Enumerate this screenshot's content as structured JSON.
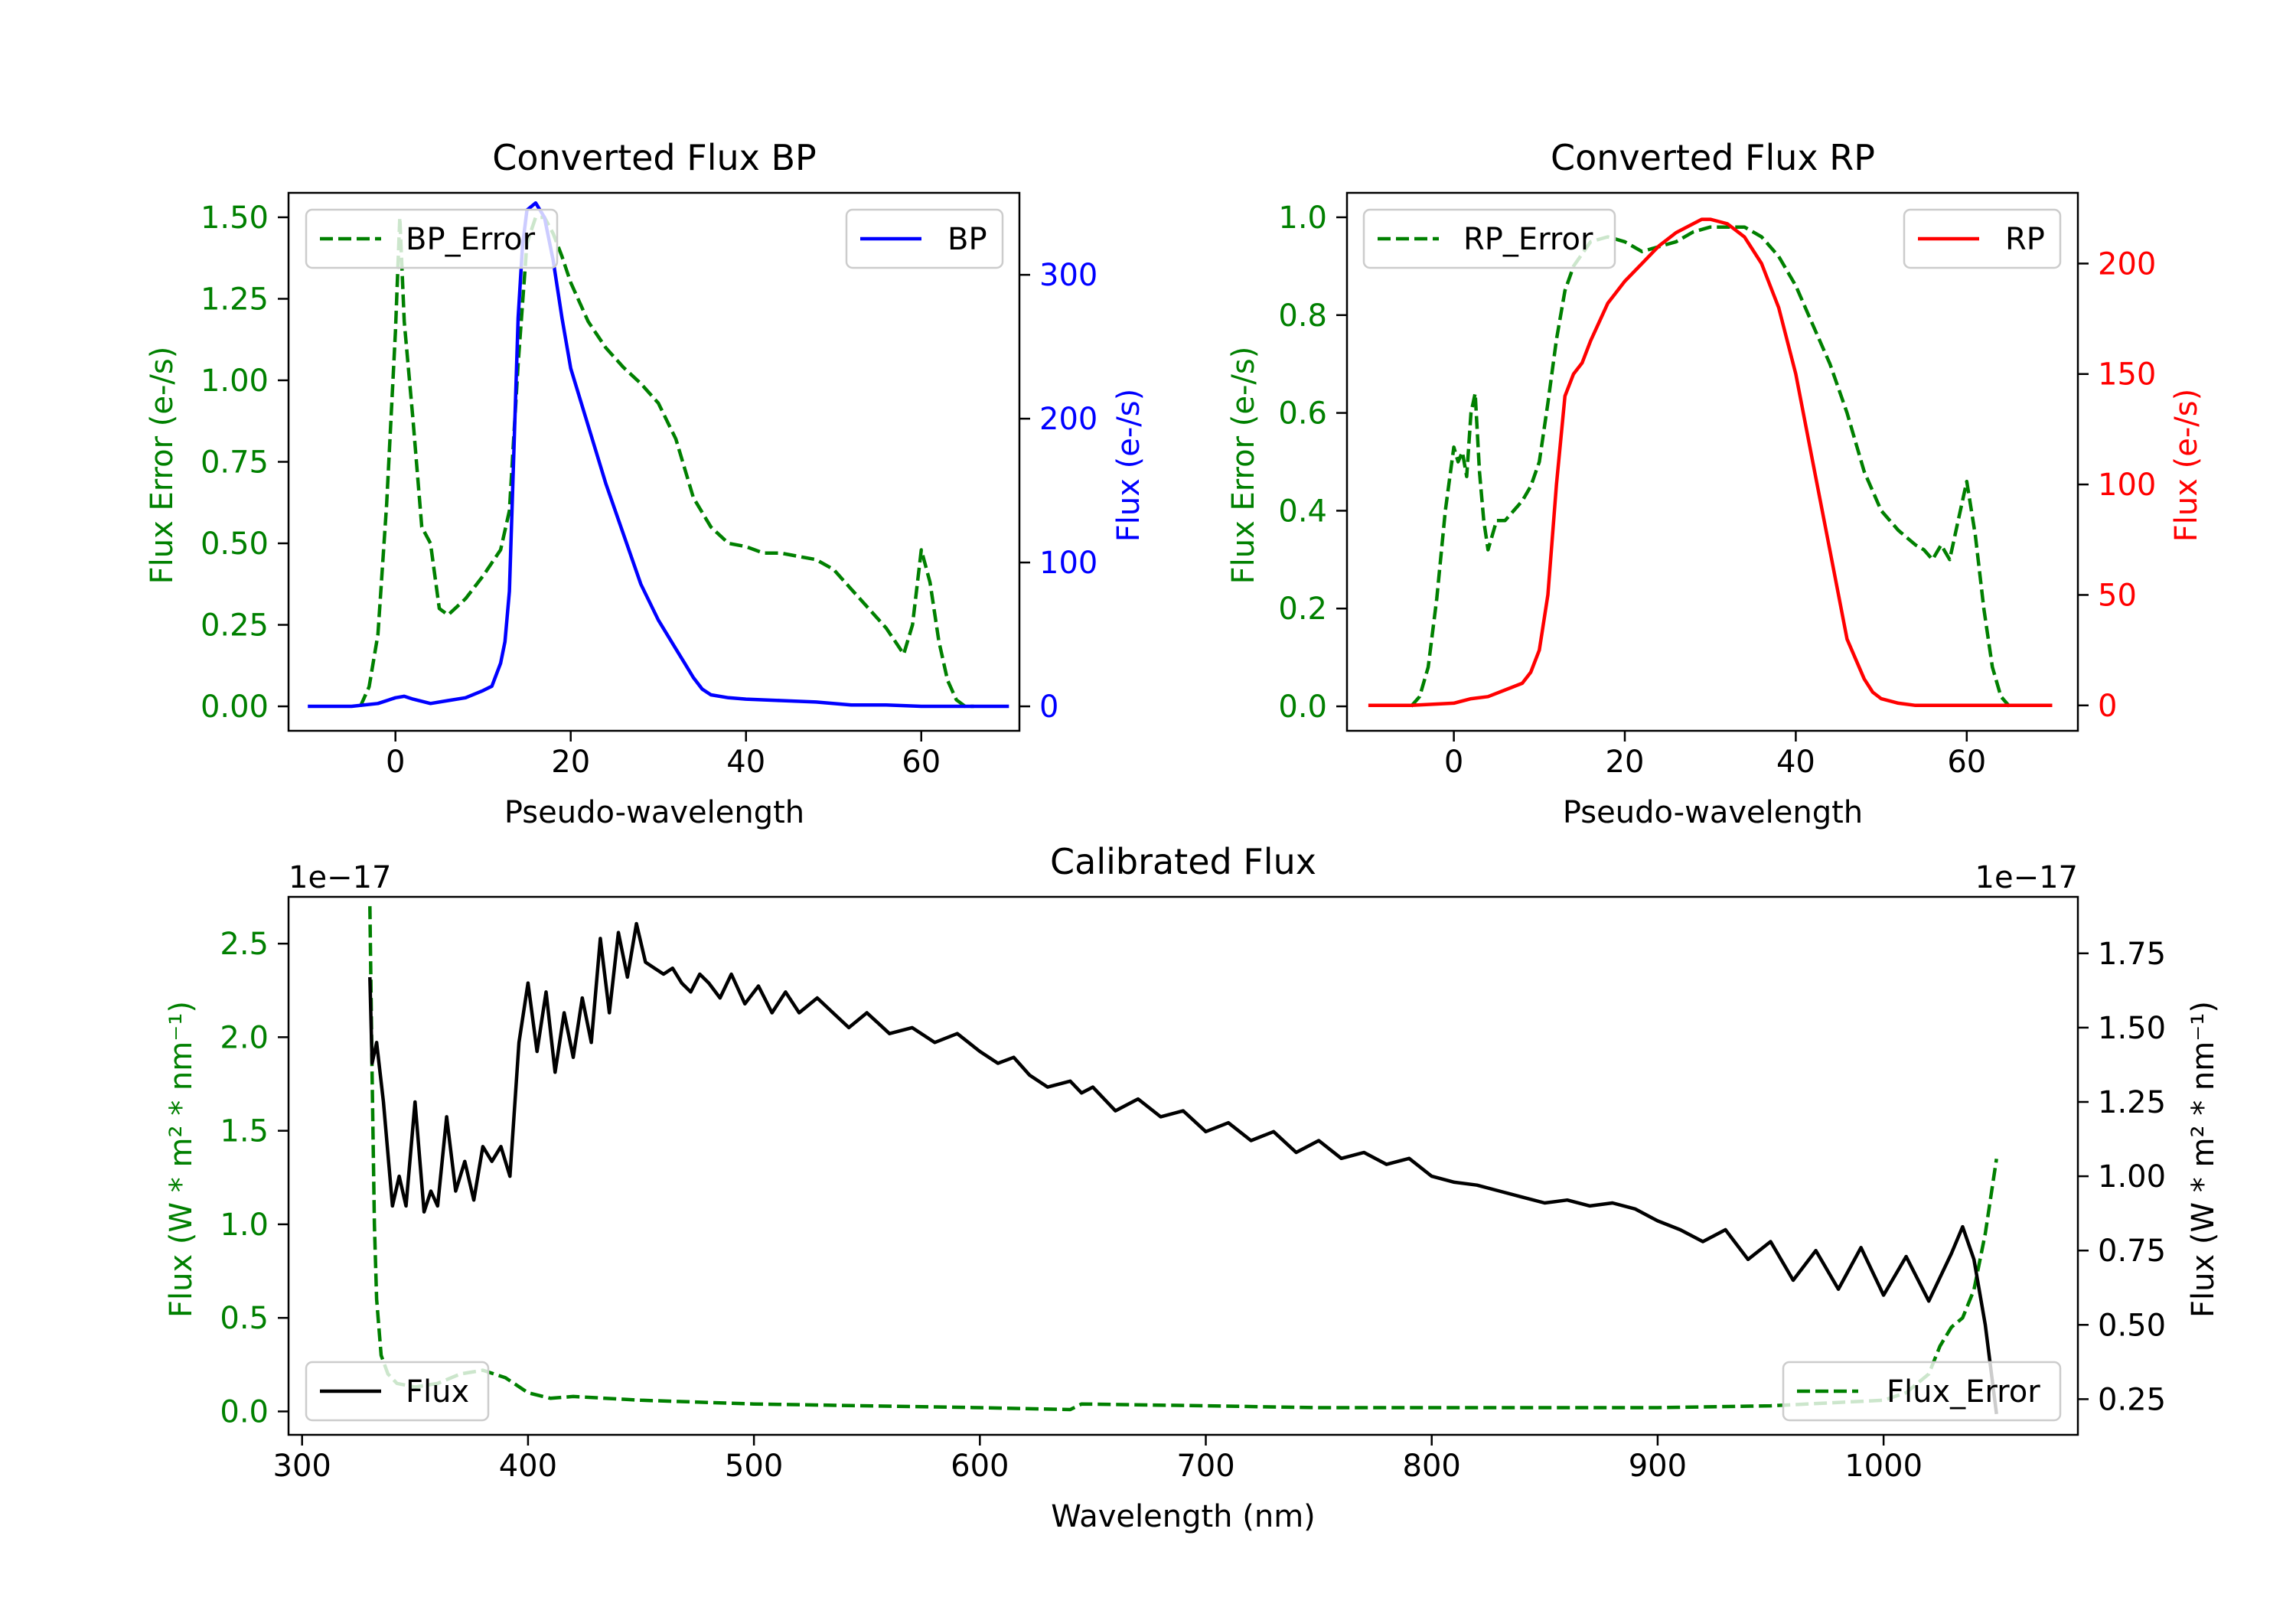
{
  "colors": {
    "green": "#008000",
    "blue": "#0000ff",
    "red": "#ff0000",
    "black": "#000000",
    "axis": "#000000",
    "legend_border": "#cccccc"
  },
  "chart_data": [
    {
      "id": "bp",
      "type": "line",
      "title": "Converted Flux BP",
      "xlabel": "Pseudo-wavelength",
      "ylabel_left": "Flux Error (e-/s)",
      "ylabel_right": "Flux (e-/s)",
      "xlim": [
        -12.2,
        71.2
      ],
      "ylim_left": [
        -0.075,
        1.575
      ],
      "ylim_right": [
        -17,
        357
      ],
      "xticks": [
        0,
        20,
        40,
        60
      ],
      "yticks_left": [
        "0.00",
        "0.25",
        "0.50",
        "0.75",
        "1.00",
        "1.25",
        "1.50"
      ],
      "yticks_right": [
        "0",
        "100",
        "200",
        "300"
      ],
      "series": [
        {
          "name": "BP_Error",
          "axis": "left",
          "color": "#008000",
          "dash": true,
          "legend": "upper left",
          "x": [
            -4,
            -3,
            -2,
            -1,
            0,
            0.5,
            1,
            2,
            3,
            4,
            5,
            6,
            8,
            10,
            12,
            13,
            14,
            15,
            16,
            17,
            18,
            19,
            20,
            22,
            24,
            26,
            28,
            30,
            32,
            34,
            36,
            38,
            40,
            42,
            44,
            46,
            48,
            50,
            52,
            54,
            56,
            57,
            58,
            59,
            60,
            61,
            62,
            63,
            64,
            65,
            66
          ],
          "y": [
            0.0,
            0.06,
            0.22,
            0.62,
            1.15,
            1.5,
            1.18,
            0.88,
            0.55,
            0.5,
            0.3,
            0.28,
            0.33,
            0.4,
            0.48,
            0.6,
            1.05,
            1.42,
            1.5,
            1.5,
            1.45,
            1.38,
            1.3,
            1.18,
            1.1,
            1.04,
            0.99,
            0.93,
            0.82,
            0.64,
            0.55,
            0.5,
            0.49,
            0.47,
            0.47,
            0.46,
            0.45,
            0.42,
            0.36,
            0.3,
            0.24,
            0.2,
            0.16,
            0.25,
            0.48,
            0.38,
            0.2,
            0.08,
            0.02,
            0.0,
            0.0
          ]
        },
        {
          "name": "BP",
          "axis": "right",
          "color": "#0000ff",
          "dash": false,
          "legend": "upper right",
          "x": [
            -10,
            -5,
            -2,
            0,
            1,
            2,
            4,
            6,
            8,
            10,
            11,
            12,
            12.5,
            13,
            14,
            14.5,
            15,
            16,
            17,
            18,
            19,
            20,
            22,
            24,
            26,
            28,
            30,
            32,
            33,
            34,
            35,
            36,
            38,
            40,
            44,
            48,
            52,
            56,
            60,
            62,
            64,
            66,
            68,
            70
          ],
          "y": [
            0,
            0,
            2,
            6,
            7,
            5,
            2,
            4,
            6,
            11,
            14,
            30,
            45,
            80,
            270,
            320,
            345,
            350,
            340,
            310,
            270,
            235,
            195,
            155,
            120,
            85,
            60,
            40,
            30,
            20,
            12,
            8,
            6,
            5,
            4,
            3,
            1,
            1,
            0,
            0,
            0,
            0,
            0,
            0
          ]
        }
      ]
    },
    {
      "id": "rp",
      "type": "line",
      "title": "Converted Flux RP",
      "xlabel": "Pseudo-wavelength",
      "ylabel_left": "Flux Error (e-/s)",
      "ylabel_right": "Flux (e-/s)",
      "xlim": [
        -12.5,
        73.0
      ],
      "ylim_left": [
        -0.05,
        1.05
      ],
      "ylim_right": [
        -11.5,
        232
      ],
      "xticks": [
        0,
        20,
        40,
        60
      ],
      "yticks_left": [
        "0.0",
        "0.2",
        "0.4",
        "0.6",
        "0.8",
        "1.0"
      ],
      "yticks_right": [
        "0",
        "50",
        "100",
        "150",
        "200"
      ],
      "series": [
        {
          "name": "RP_Error",
          "axis": "left",
          "color": "#008000",
          "dash": true,
          "legend": "upper left",
          "x": [
            -5,
            -4,
            -3,
            -2,
            -1,
            0,
            0.5,
            1,
            1.5,
            2,
            2.5,
            3,
            3.5,
            4,
            5,
            6,
            7,
            8,
            9,
            10,
            11,
            12,
            13,
            14,
            16,
            18,
            20,
            22,
            24,
            26,
            28,
            30,
            32,
            34,
            36,
            38,
            40,
            42,
            44,
            46,
            48,
            50,
            52,
            54,
            55,
            56,
            57,
            58,
            59,
            60,
            61,
            62,
            63,
            64,
            65
          ],
          "y": [
            0.0,
            0.02,
            0.08,
            0.22,
            0.4,
            0.53,
            0.5,
            0.52,
            0.47,
            0.6,
            0.64,
            0.48,
            0.38,
            0.32,
            0.38,
            0.38,
            0.4,
            0.42,
            0.45,
            0.5,
            0.62,
            0.75,
            0.85,
            0.9,
            0.95,
            0.96,
            0.95,
            0.93,
            0.94,
            0.95,
            0.97,
            0.98,
            0.98,
            0.98,
            0.96,
            0.92,
            0.86,
            0.78,
            0.7,
            0.6,
            0.48,
            0.4,
            0.36,
            0.33,
            0.32,
            0.3,
            0.33,
            0.3,
            0.38,
            0.46,
            0.35,
            0.2,
            0.08,
            0.02,
            0.0
          ]
        },
        {
          "name": "RP",
          "axis": "right",
          "color": "#ff0000",
          "dash": false,
          "legend": "upper right",
          "x": [
            -10,
            -5,
            0,
            2,
            4,
            6,
            8,
            9,
            10,
            11,
            12,
            13,
            14,
            15,
            16,
            18,
            20,
            22,
            24,
            26,
            28,
            29,
            30,
            31,
            32,
            34,
            36,
            38,
            40,
            42,
            44,
            46,
            48,
            49,
            50,
            52,
            54,
            56,
            58,
            60,
            62,
            65,
            70
          ],
          "y": [
            0,
            0,
            1,
            3,
            4,
            7,
            10,
            15,
            25,
            50,
            100,
            140,
            150,
            155,
            165,
            182,
            192,
            200,
            208,
            214,
            218,
            220,
            220,
            219,
            218,
            212,
            200,
            180,
            150,
            110,
            70,
            30,
            12,
            6,
            3,
            1,
            0,
            0,
            0,
            0,
            0,
            0,
            0
          ]
        }
      ]
    },
    {
      "id": "cal",
      "type": "line",
      "title": "Calibrated Flux",
      "xlabel": "Wavelength (nm)",
      "ylabel_left": "Flux (W * m² * nm⁻¹)",
      "ylabel_right": "Flux (W * m² * nm⁻¹)",
      "offset_left": "1e−17",
      "offset_right": "1e−17",
      "xlim": [
        294,
        1086
      ],
      "ylim_left": [
        -0.125,
        2.75
      ],
      "ylim_right": [
        0.13,
        1.94
      ],
      "xticks": [
        300,
        400,
        500,
        600,
        700,
        800,
        900,
        1000
      ],
      "yticks_left": [
        "0.0",
        "0.5",
        "1.0",
        "1.5",
        "2.0",
        "2.5"
      ],
      "yticks_right": [
        "0.25",
        "0.50",
        "0.75",
        "1.00",
        "1.25",
        "1.50",
        "1.75"
      ],
      "series": [
        {
          "name": "Flux_Error",
          "axis": "left",
          "color": "#008000",
          "dash": true,
          "legend": "lower right",
          "x": [
            330,
            331,
            332,
            333,
            335,
            338,
            342,
            350,
            360,
            370,
            380,
            390,
            400,
            410,
            420,
            450,
            500,
            550,
            600,
            640,
            645,
            700,
            750,
            800,
            850,
            900,
            950,
            1000,
            1010,
            1020,
            1025,
            1030,
            1035,
            1040,
            1045,
            1050
          ],
          "y": [
            2.7,
            1.8,
            1.0,
            0.6,
            0.3,
            0.2,
            0.15,
            0.13,
            0.15,
            0.2,
            0.22,
            0.18,
            0.1,
            0.07,
            0.08,
            0.06,
            0.04,
            0.03,
            0.02,
            0.01,
            0.04,
            0.03,
            0.02,
            0.02,
            0.02,
            0.02,
            0.03,
            0.06,
            0.1,
            0.2,
            0.35,
            0.45,
            0.5,
            0.65,
            0.95,
            1.35
          ]
        },
        {
          "name": "Flux",
          "axis": "right",
          "color": "#000000",
          "dash": false,
          "legend": "lower left",
          "x": [
            330,
            331,
            333,
            336,
            340,
            343,
            346,
            350,
            354,
            357,
            360,
            364,
            368,
            372,
            376,
            380,
            384,
            388,
            392,
            396,
            400,
            404,
            408,
            412,
            416,
            420,
            424,
            428,
            432,
            436,
            440,
            444,
            448,
            452,
            456,
            460,
            464,
            468,
            472,
            476,
            480,
            485,
            490,
            496,
            502,
            508,
            514,
            520,
            528,
            535,
            542,
            550,
            560,
            570,
            580,
            590,
            600,
            608,
            615,
            622,
            630,
            640,
            645,
            650,
            660,
            670,
            680,
            690,
            700,
            710,
            720,
            730,
            740,
            750,
            760,
            770,
            780,
            790,
            800,
            810,
            820,
            830,
            840,
            850,
            860,
            870,
            880,
            890,
            900,
            910,
            920,
            930,
            940,
            950,
            960,
            970,
            980,
            990,
            1000,
            1010,
            1020,
            1030,
            1035,
            1040,
            1045,
            1050
          ],
          "y": [
            1.67,
            1.38,
            1.45,
            1.25,
            0.9,
            1.0,
            0.9,
            1.25,
            0.88,
            0.95,
            0.9,
            1.2,
            0.95,
            1.05,
            0.92,
            1.1,
            1.05,
            1.1,
            1.0,
            1.45,
            1.65,
            1.42,
            1.62,
            1.35,
            1.55,
            1.4,
            1.6,
            1.45,
            1.8,
            1.55,
            1.82,
            1.67,
            1.85,
            1.72,
            1.7,
            1.68,
            1.7,
            1.65,
            1.62,
            1.68,
            1.65,
            1.6,
            1.68,
            1.58,
            1.64,
            1.55,
            1.62,
            1.55,
            1.6,
            1.55,
            1.5,
            1.55,
            1.48,
            1.5,
            1.45,
            1.48,
            1.42,
            1.38,
            1.4,
            1.34,
            1.3,
            1.32,
            1.28,
            1.3,
            1.22,
            1.26,
            1.2,
            1.22,
            1.15,
            1.18,
            1.12,
            1.15,
            1.08,
            1.12,
            1.06,
            1.08,
            1.04,
            1.06,
            1.0,
            0.98,
            0.97,
            0.95,
            0.93,
            0.91,
            0.92,
            0.9,
            0.91,
            0.89,
            0.85,
            0.82,
            0.78,
            0.82,
            0.72,
            0.78,
            0.65,
            0.75,
            0.62,
            0.76,
            0.6,
            0.73,
            0.58,
            0.74,
            0.83,
            0.72,
            0.5,
            0.2
          ]
        }
      ]
    }
  ]
}
